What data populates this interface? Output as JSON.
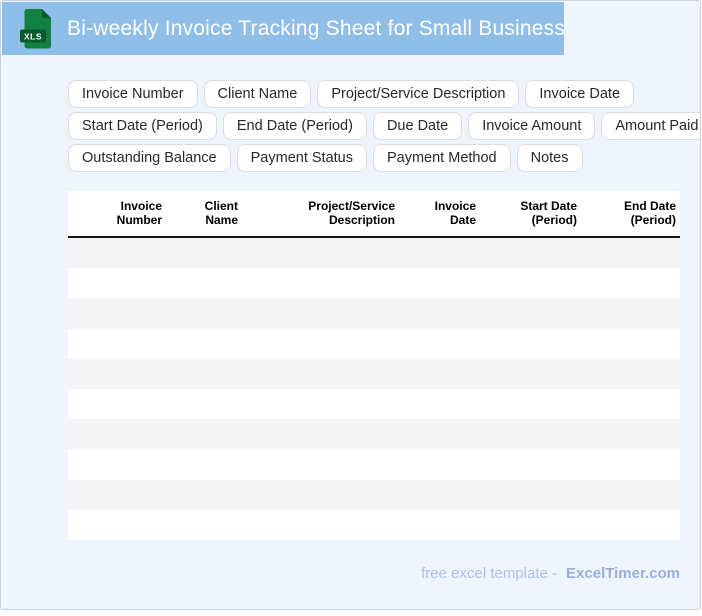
{
  "header": {
    "title": "Bi-weekly Invoice Tracking Sheet for Small Business",
    "file_icon_label": "XLS"
  },
  "chips": [
    "Invoice Number",
    "Client Name",
    "Project/Service Description",
    "Invoice Date",
    "Start Date (Period)",
    "End Date (Period)",
    "Due Date",
    "Invoice Amount",
    "Amount Paid",
    "Outstanding Balance",
    "Payment Status",
    "Payment Method",
    "Notes"
  ],
  "table": {
    "columns": [
      {
        "label": "Invoice\nNumber"
      },
      {
        "label": "Client\nName"
      },
      {
        "label": "Project/Service\nDescription"
      },
      {
        "label": "Invoice\nDate"
      },
      {
        "label": "Start Date\n(Period)"
      },
      {
        "label": "End Date\n(Period)"
      }
    ],
    "empty_rows": 10
  },
  "footer": {
    "text": "free excel template -",
    "brand": "ExcelTimer.com"
  },
  "colors": {
    "header_bg": "#8FBEE9",
    "page_bg": "#EEF5FC",
    "icon_green": "#128040",
    "icon_green_dark": "#0A5C2F",
    "row_stripe": "#F4F4F4",
    "footer_text": "#AFC0E9",
    "footer_brand": "#9BAEDC"
  }
}
